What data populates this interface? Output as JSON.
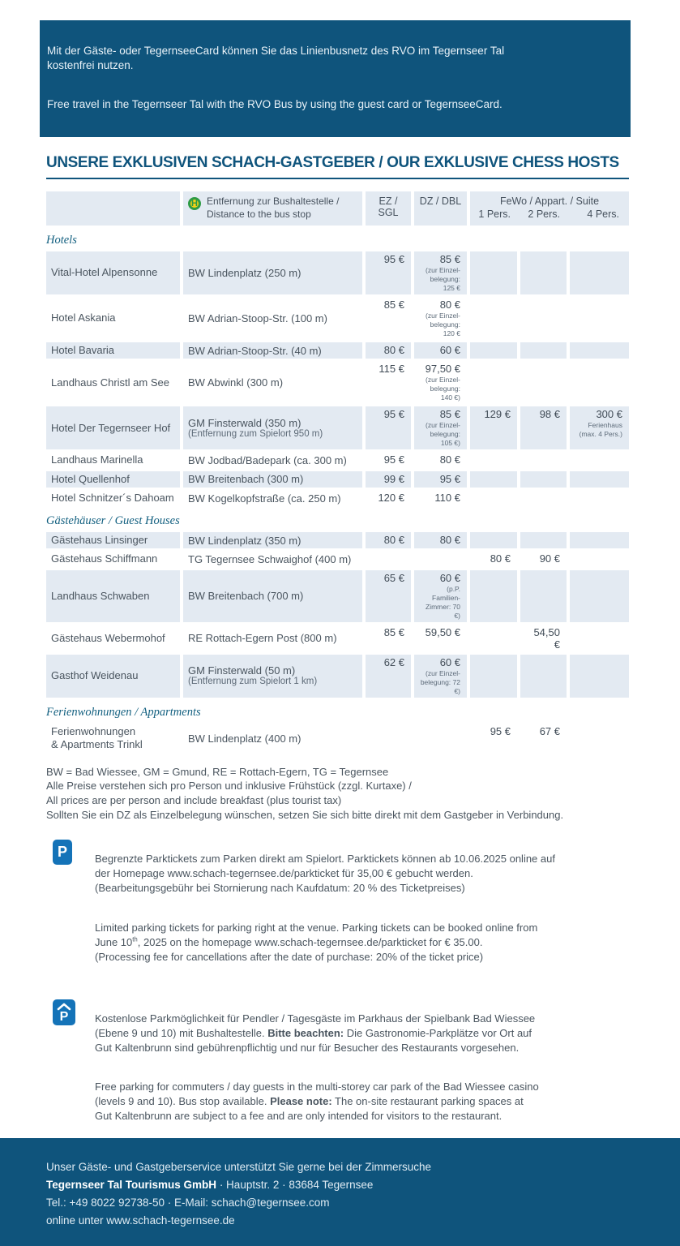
{
  "colors": {
    "brand_blue": "#0f547c",
    "row_shade": "#e3eaf2",
    "parking_icon_blue": "#1473b8",
    "bus_icon_green": "#2e9b44",
    "bus_icon_yellow": "#f7d116"
  },
  "banner": {
    "de": "Mit der Gäste- oder TegernseeCard können Sie das Linienbusnetz des RVO im Tegernseer Tal\nkostenfrei nutzen.",
    "en": "Free travel in the Tegernseer Tal with the RVO Bus by using the guest card or TegernseeCard."
  },
  "title": "UNSERE EXKLUSIVEN SCHACH-GASTGEBER / OUR EXKLUSIVE CHESS HOSTS",
  "table": {
    "header": {
      "bus_icon_letter": "H",
      "distance": "Entfernung zur Bushaltestelle /\nDistance to the bus stop",
      "ez": "EZ / SGL",
      "dz": "DZ / DBL",
      "fewo": "FeWo / Appart. / Suite",
      "p1": "1 Pers.",
      "p2": "2 Pers.",
      "p4": "4 Pers."
    },
    "sections": [
      {
        "heading": "Hotels",
        "shaded_first": true,
        "rows": [
          {
            "name": "Vital-Hotel Alpensonne",
            "dist": [
              "BW Lindenplatz (250 m)"
            ],
            "ez": {
              "v": "95 €"
            },
            "dz": {
              "v": "85 €",
              "note": [
                "(zur Einzel-",
                "belegung: 125 €"
              ]
            }
          },
          {
            "name": "Hotel Askania",
            "dist": [
              "BW Adrian-Stoop-Str. (100 m)"
            ],
            "ez": {
              "v": "85 €"
            },
            "dz": {
              "v": "80 €",
              "note": [
                "(zur Einzel-",
                "belegung: 120 €"
              ]
            }
          },
          {
            "name": "Hotel Bavaria",
            "dist": [
              "BW Adrian-Stoop-Str. (40 m)"
            ],
            "ez": {
              "v": "80 €"
            },
            "dz": {
              "v": "60 €"
            }
          },
          {
            "name": "Landhaus Christl am See",
            "dist": [
              "BW Abwinkl (300 m)"
            ],
            "ez": {
              "v": "115 €"
            },
            "dz": {
              "v": "97,50 €",
              "note": [
                "(zur Einzel-",
                "belegung: 140 €)"
              ]
            }
          },
          {
            "name": "Hotel Der Tegernseer Hof",
            "dist": [
              "GM Finsterwald (350 m)",
              "(Entfernung zum Spielort 950 m)"
            ],
            "ez": {
              "v": "95 €"
            },
            "dz": {
              "v": "85 €",
              "note": [
                "(zur Einzel-",
                "belegung: 105 €)"
              ]
            },
            "p1": {
              "v": "129 €"
            },
            "p2": {
              "v": "98 €"
            },
            "p4": {
              "v": "300 €",
              "note": [
                "Ferienhaus",
                "(max. 4 Pers.)"
              ]
            }
          },
          {
            "name": "Landhaus Marinella",
            "dist": [
              "BW Jodbad/Badepark (ca. 300 m)"
            ],
            "ez": {
              "v": "95 €"
            },
            "dz": {
              "v": "80 €"
            }
          },
          {
            "name": "Hotel Quellenhof",
            "dist": [
              "BW Breitenbach (300 m)"
            ],
            "ez": {
              "v": "99 €"
            },
            "dz": {
              "v": "95 €"
            }
          },
          {
            "name": "Hotel Schnitzer´s Dahoam",
            "dist": [
              "BW Kogelkopfstraße (ca. 250 m)"
            ],
            "ez": {
              "v": "120 €"
            },
            "dz": {
              "v": "110 €"
            }
          }
        ]
      },
      {
        "heading": "Gästehäuser / Guest Houses",
        "shaded_first": true,
        "rows": [
          {
            "name": "Gästehaus Linsinger",
            "dist": [
              "BW Lindenplatz (350 m)"
            ],
            "ez": {
              "v": "80 €"
            },
            "dz": {
              "v": "80 €"
            }
          },
          {
            "name": "Gästehaus Schiffmann",
            "dist": [
              "TG Tegernsee Schwaighof (400 m)"
            ],
            "p1": {
              "v": "80 €"
            },
            "p2": {
              "v": "90 €"
            }
          },
          {
            "name": "Landhaus Schwaben",
            "dist": [
              "BW Breitenbach (700 m)"
            ],
            "ez": {
              "v": "65 €"
            },
            "dz": {
              "v": "60 €",
              "note": [
                "(p.P. Familien-",
                "Zimmer: 70 €)"
              ]
            }
          },
          {
            "name": "Gästehaus Webermohof",
            "dist": [
              "RE Rottach-Egern Post (800 m)"
            ],
            "ez": {
              "v": "85 €"
            },
            "dz": {
              "v": "59,50 €"
            },
            "p2": {
              "v": "54,50 €"
            }
          },
          {
            "name": "Gasthof Weidenau",
            "dist": [
              "GM Finsterwald (50 m)",
              "(Entfernung zum Spielort 1 km)"
            ],
            "ez": {
              "v": "62 €"
            },
            "dz": {
              "v": "60 €",
              "note": [
                "(zur Einzel-",
                "belegung: 72 €)"
              ]
            }
          }
        ]
      },
      {
        "heading": "Ferienwohnungen / Appartments",
        "shaded_first": false,
        "rows": [
          {
            "name_lines": [
              "Ferienwohnungen",
              "& Apartments Trinkl"
            ],
            "dist": [
              "BW Lindenplatz (400 m)"
            ],
            "p1": {
              "v": "95 €"
            },
            "p2": {
              "v": "67 €"
            }
          }
        ]
      }
    ]
  },
  "footnotes": "BW = Bad Wiessee, GM = Gmund, RE = Rottach-Egern, TG = Tegernsee\nAlle Preise verstehen sich pro Person und inklusive Frühstück (zzgl. Kurtaxe) /\nAll prices are per person and include breakfast (plus tourist tax)\nSollten Sie ein DZ als Einzelbelegung wünschen, setzen Sie sich bitte direkt mit dem Gastgeber in Verbindung.",
  "parking1": {
    "icon_letter": "P",
    "de": "Begrenzte Parktickets zum Parken direkt am Spielort. Parktickets können ab 10.06.2025 online auf\nder Homepage www.schach-tegernsee.de/parkticket für 35,00 € gebucht werden.\n(Bearbeitungsgebühr bei Stornierung nach Kaufdatum: 20 % des Ticketpreises)",
    "en": {
      "before": "Limited parking tickets for parking right at the venue. Parking tickets can be booked online from\nJune 10",
      "sup": "th",
      "after": ", 2025 on the homepage www.schach-tegernsee.de/parkticket for € 35.00.\n(Processing fee for cancellations after the date of purchase: 20% of the ticket price)"
    }
  },
  "parking2": {
    "icon_letter": "P",
    "de": {
      "before": "Kostenlose Parkmöglichkeit für Pendler / Tagesgäste im Parkhaus der Spielbank Bad Wiessee\n(Ebene 9 und 10) mit Bushaltestelle. ",
      "bold": "Bitte beachten:",
      "after": " Die Gastronomie-Parkplätze vor Ort auf\nGut Kaltenbrunn sind gebührenpflichtig und nur für Besucher des Restaurants vorgesehen."
    },
    "en": {
      "before": "Free parking for commuters / day guests in the multi-storey car park of the Bad Wiessee casino\n(levels 9 and 10). Bus stop available. ",
      "bold": "Please note:",
      "after": " The on-site restaurant parking spaces at\nGut Kaltenbrunn are subject to a fee and are only intended for visitors to the restaurant."
    }
  },
  "footer": {
    "line1": "Unser Gäste- und Gastgeberservice unterstützt Sie gerne bei der Zimmersuche",
    "company": "Tegernseer Tal Tourismus GmbH",
    "line2_rest": " · Hauptstr. 2 · 83684 Tegernsee",
    "line3": "Tel.: +49 8022 92738-50 · E-Mail: schach@tegernsee.com",
    "line4": "online unter www.schach-tegernsee.de"
  }
}
